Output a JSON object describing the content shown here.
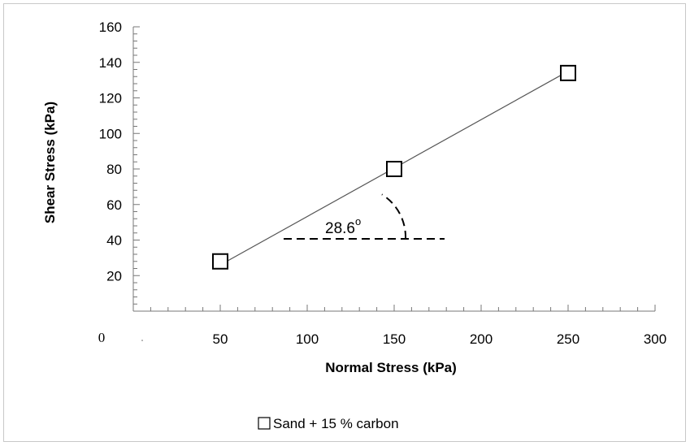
{
  "chart_data": {
    "type": "scatter",
    "xlabel": "Normal Stress (kPa)",
    "ylabel": "Shear Stress (kPa)",
    "xlim": [
      0,
      300
    ],
    "ylim": [
      0,
      160
    ],
    "x_ticks": [
      "50",
      "100",
      "150",
      "200",
      "250",
      "300"
    ],
    "x_origin_label": "0",
    "y_ticks": [
      "20",
      "40",
      "60",
      "80",
      "100",
      "120",
      "140",
      "160"
    ],
    "series": [
      {
        "name": "Sand + 15 % carbon",
        "marker": "open-square",
        "x": [
          50,
          150,
          250
        ],
        "y": [
          28,
          80,
          134
        ]
      }
    ],
    "trendline": {
      "x": [
        50,
        250
      ],
      "y": [
        26,
        135
      ]
    },
    "annotation": {
      "text": "28.6",
      "symbol": "o",
      "meaning": "friction angle"
    },
    "legend_position": "bottom-center",
    "colors": {
      "line": "#555555",
      "marker": "#000000",
      "frame": "#c8c8c8"
    }
  }
}
